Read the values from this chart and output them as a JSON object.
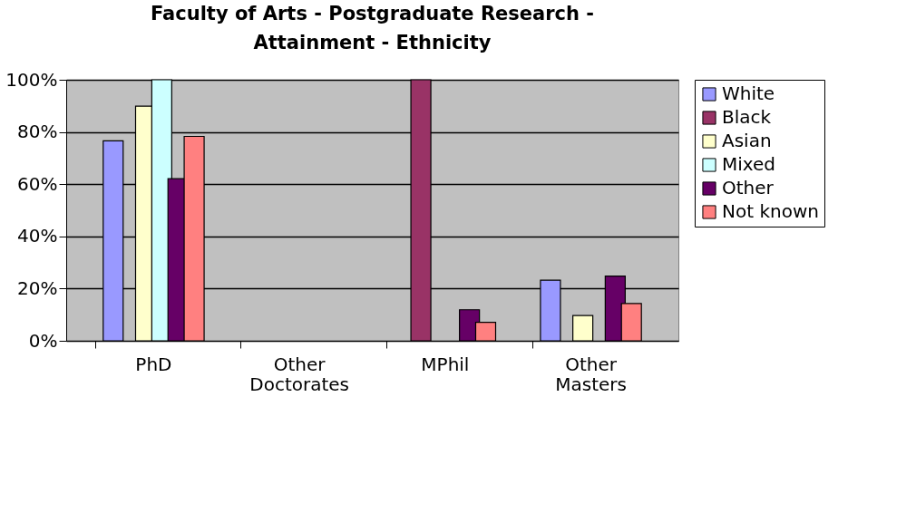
{
  "chart_data": {
    "type": "bar",
    "title": "Faculty of Arts - Postgraduate Research - Attainment - Ethnicity",
    "categories": [
      "PhD",
      "Other Doctorates",
      "MPhil",
      "Other Masters"
    ],
    "series": [
      {
        "name": "White",
        "color": "#9999ff",
        "values": [
          76.6,
          null,
          null,
          23.2
        ]
      },
      {
        "name": "Black",
        "color": "#993366",
        "values": [
          null,
          null,
          100,
          null
        ]
      },
      {
        "name": "Asian",
        "color": "#ffffcc",
        "values": [
          89.9,
          null,
          null,
          9.7
        ]
      },
      {
        "name": "Mixed",
        "color": "#ccffff",
        "values": [
          100,
          null,
          null,
          null
        ]
      },
      {
        "name": "Other",
        "color": "#660066",
        "values": [
          62.1,
          null,
          11.9,
          24.8
        ]
      },
      {
        "name": "Not known",
        "color": "#ff8080",
        "values": [
          78.3,
          null,
          7.1,
          14.3
        ]
      }
    ],
    "ylim": [
      0,
      100
    ],
    "yticks": [
      {
        "value": 0,
        "label": "0%"
      },
      {
        "value": 20,
        "label": "20%"
      },
      {
        "value": 40,
        "label": "40%"
      },
      {
        "value": 60,
        "label": "60%"
      },
      {
        "value": 80,
        "label": "80%"
      },
      {
        "value": 100,
        "label": "100%"
      }
    ],
    "grid": "y",
    "legend": "right"
  }
}
